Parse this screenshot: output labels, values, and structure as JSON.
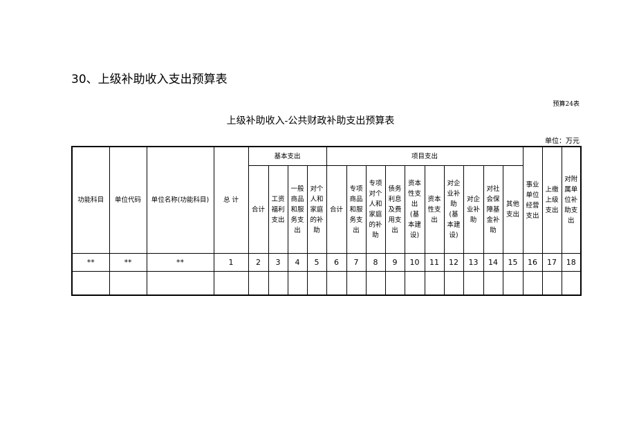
{
  "title": "30、上级补助收入支出预算表",
  "form_no": "预算24表",
  "subtitle": "上级补助收入-公共财政补助支出预算表",
  "unit": "单位：万元",
  "headers": {
    "func": "功能科目",
    "code": "单位代码",
    "name": "单位名称(功能科目)",
    "total": "总  计",
    "basic": "基本支出",
    "project": "项目支出",
    "basic_cols": [
      "合计",
      "工资\n福利\n支出",
      "一般\n商品\n和服\n务支\n出",
      "对个\n人和\n家庭\n的补\n助"
    ],
    "project_cols": [
      "合计",
      "专项\n商品\n和服\n务支\n出",
      "专项\n对个\n人和\n家庭\n的补\n助",
      "债务\n利息\n及费\n用支\n出",
      "资本\n性支\n出\n(基\n本建\n设)",
      "资本\n性支\n出",
      "对企\n业补\n助\n(基\n本建\n设)",
      "对企\n业补\n助",
      "对社\n会保\n障基\n金补\n助",
      "其他\n支出"
    ],
    "biz": "事业\n单位\n经营\n支出",
    "upper": "上缴\n上级\n支出",
    "sub": "对附\n属单\n位补\n助支\n出"
  },
  "number_row": [
    "**",
    "**",
    "**",
    "1",
    "2",
    "3",
    "4",
    "5",
    "6",
    "7",
    "8",
    "9",
    "10",
    "11",
    "12",
    "13",
    "14",
    "15",
    "16",
    "17",
    "18"
  ]
}
